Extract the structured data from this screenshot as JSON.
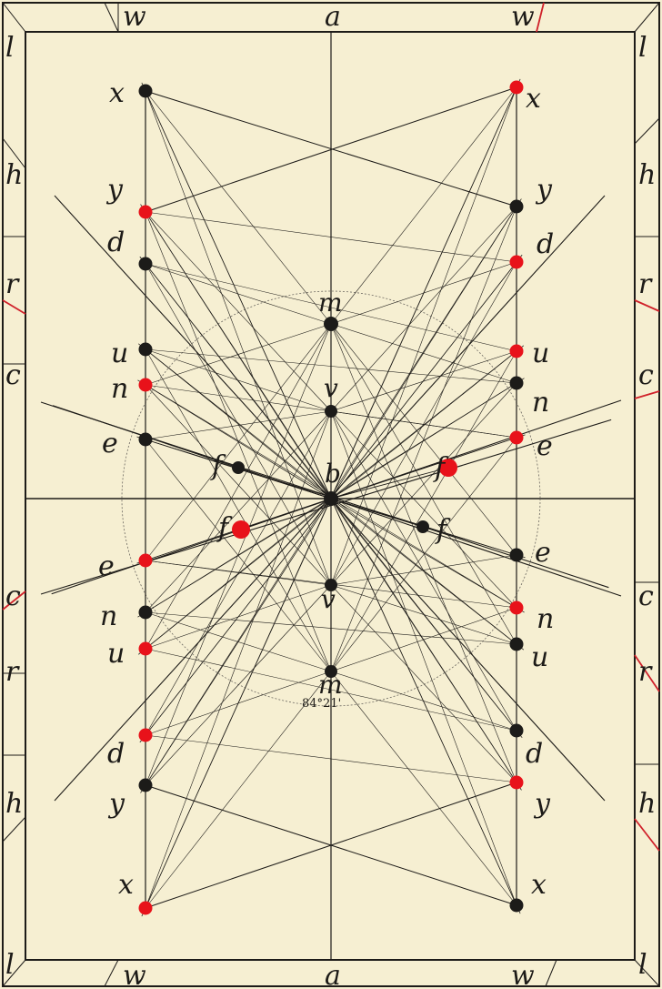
{
  "diagram": {
    "colors": {
      "paper": "#f6efd2",
      "ink": "#1d1b18",
      "red_dot": "#e8121a",
      "black_dot": "#1c1b19",
      "red_tick": "#d0212a"
    },
    "border_labels": {
      "top": [
        "w",
        "a",
        "w"
      ],
      "bottom": [
        "w",
        "a",
        "w"
      ],
      "left": [
        "l",
        "h",
        "r",
        "c",
        "c",
        "r",
        "h",
        "l"
      ],
      "right": [
        "l",
        "h",
        "r",
        "c",
        "c",
        "r",
        "h",
        "l"
      ]
    },
    "point_labels": {
      "left": [
        "x",
        "y",
        "d",
        "u",
        "n",
        "e",
        "e",
        "n",
        "u",
        "d",
        "y",
        "x"
      ],
      "right": [
        "x",
        "y",
        "d",
        "u",
        "n",
        "e",
        "e",
        "n",
        "u",
        "d",
        "y",
        "x"
      ],
      "center": [
        "m",
        "v",
        "b",
        "v",
        "m"
      ],
      "f": [
        "f",
        "f",
        "f",
        "f"
      ]
    },
    "angle_note": "84°21'"
  }
}
